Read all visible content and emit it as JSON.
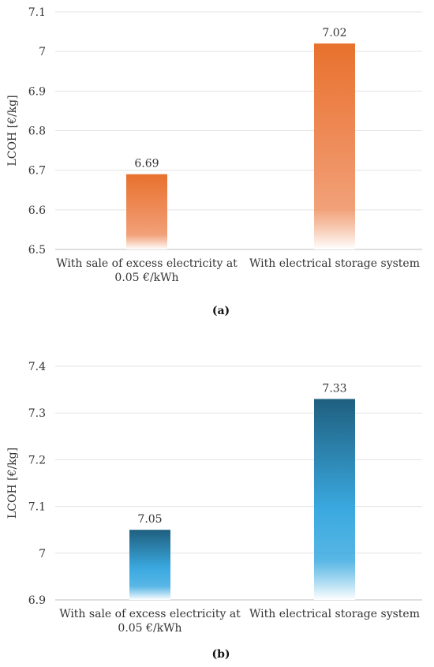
{
  "chart_data": [
    {
      "type": "bar",
      "panel_label": "(a)",
      "ylabel": "LCOH [€/kg]",
      "ylim": [
        6.5,
        7.1
      ],
      "yticks": [
        "6.5",
        "6.6",
        "6.7",
        "6.8",
        "6.9",
        "7",
        "7.1"
      ],
      "categories": [
        [
          "With sale of excess electricity at",
          "0.05 €/kWh"
        ],
        [
          "With electrical storage system"
        ]
      ],
      "values": [
        6.69,
        7.02
      ],
      "value_labels": [
        "6.69",
        "7.02"
      ],
      "colors": {
        "bar_top": "#e8712d",
        "bar_mid": "#ef9060",
        "bar_bottom": "#ffffff"
      }
    },
    {
      "type": "bar",
      "panel_label": "(b)",
      "ylabel": "LCOH [€/kg]",
      "ylim": [
        6.9,
        7.4
      ],
      "yticks": [
        "6.9",
        "7",
        "7.1",
        "7.2",
        "7.3",
        "7.4"
      ],
      "categories": [
        [
          "With sale of excess electricity at",
          "0.05 €/kWh"
        ],
        [
          "With electrical storage system"
        ]
      ],
      "values": [
        7.05,
        7.33
      ],
      "value_labels": [
        "7.05",
        "7.33"
      ],
      "colors": {
        "bar_top": "#1f5f7f",
        "bar_mid": "#3aa9e0",
        "bar_bottom": "#ffffff"
      }
    }
  ],
  "colors": {
    "grid": "#e3e3e3",
    "axis": "#bfbfbf"
  }
}
